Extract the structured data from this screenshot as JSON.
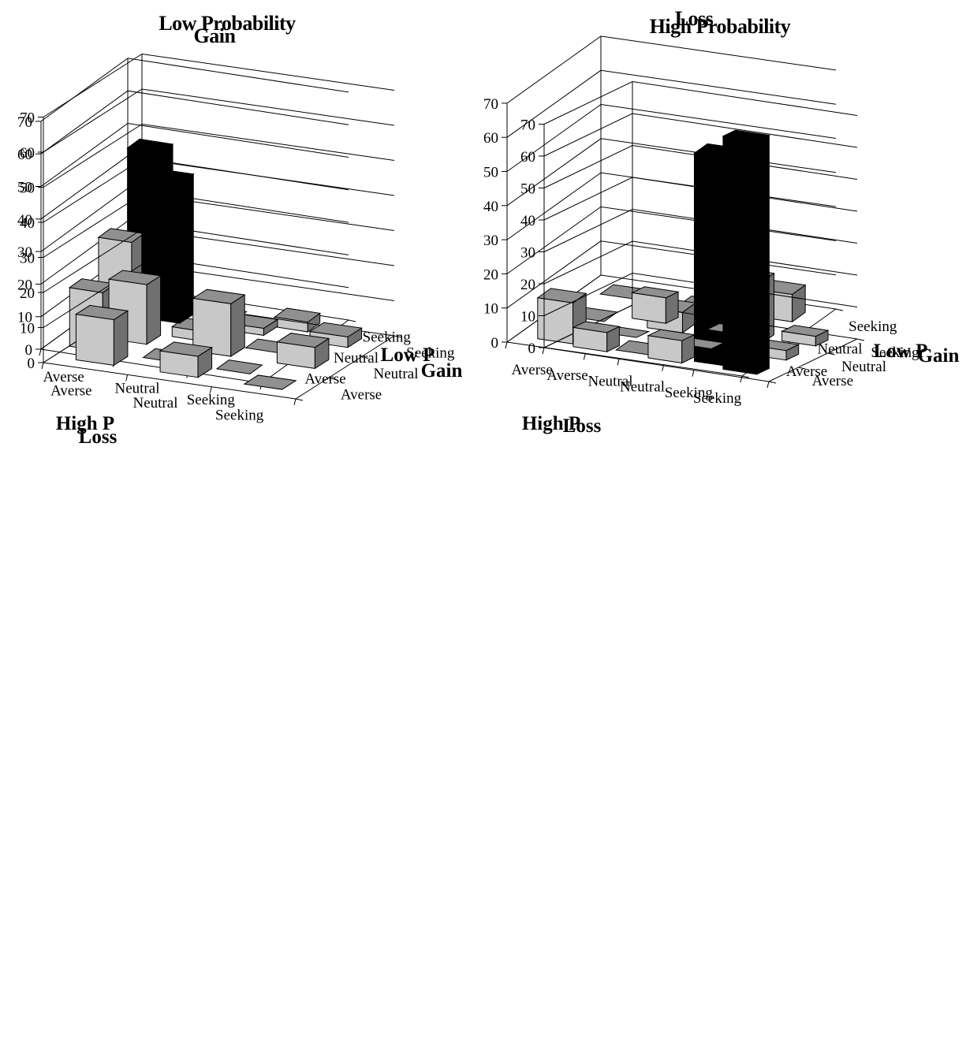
{
  "charts": [
    {
      "title": "Gain",
      "front_axis_title": "High P",
      "depth_axis_title": "Low P",
      "front_categories": [
        "Averse",
        "Neutral",
        "Seeking"
      ],
      "depth_categories": [
        "Averse",
        "Neutral",
        "Seeking"
      ],
      "y_ticks": [
        "0",
        "10",
        "20",
        "30",
        "40",
        "50",
        "60",
        "70"
      ]
    },
    {
      "title": "Loss",
      "front_axis_title": "High P",
      "depth_axis_title": "Low P",
      "front_categories": [
        "Averse",
        "Neutral",
        "Seeking"
      ],
      "depth_categories": [
        "Averse",
        "Neutral",
        "Seeking"
      ],
      "y_ticks": [
        "0",
        "10",
        "20",
        "30",
        "40",
        "50",
        "60",
        "70"
      ]
    },
    {
      "title": "Low Probability",
      "front_axis_title": "Loss",
      "depth_axis_title": "Gain",
      "front_categories": [
        "Averse",
        "Neutral",
        "Seeking"
      ],
      "depth_categories": [
        "Averse",
        "Neutral",
        "Seeking"
      ],
      "y_ticks": [
        "0",
        "10",
        "20",
        "30",
        "40",
        "50",
        "60",
        "70"
      ]
    },
    {
      "title": "High Probability",
      "front_axis_title": "Loss",
      "depth_axis_title": "Gain",
      "front_categories": [
        "Averse",
        "Neutral",
        "Seeking"
      ],
      "depth_categories": [
        "Averse",
        "Neutral",
        "Seeking"
      ],
      "y_ticks": [
        "0",
        "10",
        "20",
        "30",
        "40",
        "50",
        "60",
        "70"
      ]
    }
  ],
  "chart_data": [
    {
      "type": "bar",
      "subtype": "3d-bar-grid",
      "title": "Gain",
      "x_label": "High P",
      "z_label": "Low P",
      "x_categories": [
        "Averse",
        "Neutral",
        "Seeking"
      ],
      "z_categories": [
        "Averse",
        "Neutral",
        "Seeking"
      ],
      "ylim": [
        0,
        70
      ],
      "y_tick_step": 10,
      "grid": true,
      "values": [
        [
          18,
          0,
          0
        ],
        [
          27,
          3,
          0
        ],
        [
          48,
          0,
          3
        ]
      ],
      "values_layout": "values[z_index][x_index]; z_index 0 = Averse (front row)",
      "highlight": {
        "x": "Averse",
        "z": "Seeking",
        "color": "#000000"
      }
    },
    {
      "type": "bar",
      "subtype": "3d-bar-grid",
      "title": "Loss",
      "x_label": "High P",
      "z_label": "Low P",
      "x_categories": [
        "Averse",
        "Neutral",
        "Seeking"
      ],
      "z_categories": [
        "Averse",
        "Neutral",
        "Seeking"
      ],
      "ylim": [
        0,
        70
      ],
      "y_tick_step": 10,
      "grid": true,
      "values": [
        [
          12,
          0,
          61
        ],
        [
          0,
          6,
          18
        ],
        [
          0,
          0,
          8
        ]
      ],
      "values_layout": "values[z_index][x_index]; z_index 0 = Averse (front row)",
      "highlight": {
        "x": "Seeking",
        "z": "Averse",
        "color": "#000000"
      }
    },
    {
      "type": "bar",
      "subtype": "3d-bar-grid",
      "title": "Low Probability",
      "x_label": "Loss",
      "z_label": "Gain",
      "x_categories": [
        "Averse",
        "Neutral",
        "Seeking"
      ],
      "z_categories": [
        "Averse",
        "Neutral",
        "Seeking"
      ],
      "ylim": [
        0,
        70
      ],
      "y_tick_step": 10,
      "grid": true,
      "values": [
        [
          13,
          6,
          0
        ],
        [
          17,
          15,
          6
        ],
        [
          40,
          2,
          3
        ]
      ],
      "values_layout": "values[z_index][x_index]; z_index 0 = Averse (front row)",
      "highlight": {
        "x": "Averse",
        "z": "Seeking",
        "color": "#000000"
      }
    },
    {
      "type": "bar",
      "subtype": "3d-bar-grid",
      "title": "High Probability",
      "x_label": "Loss",
      "z_label": "Gain",
      "x_categories": [
        "Averse",
        "Neutral",
        "Seeking"
      ],
      "z_categories": [
        "Averse",
        "Neutral",
        "Seeking"
      ],
      "ylim": [
        0,
        70
      ],
      "y_tick_step": 10,
      "grid": true,
      "values": [
        [
          6,
          7,
          73
        ],
        [
          0,
          0,
          3
        ],
        [
          8,
          0,
          3
        ]
      ],
      "values_layout": "values[z_index][x_index]; z_index 0 = Averse (front row)",
      "highlight": {
        "x": "Seeking",
        "z": "Averse",
        "color": "#000000"
      }
    }
  ],
  "colors": {
    "bar_front": "#c8c8c8",
    "bar_side": "#707070",
    "bar_top": "#909090",
    "highlight_bar": "#000000",
    "axis": "#000000"
  }
}
